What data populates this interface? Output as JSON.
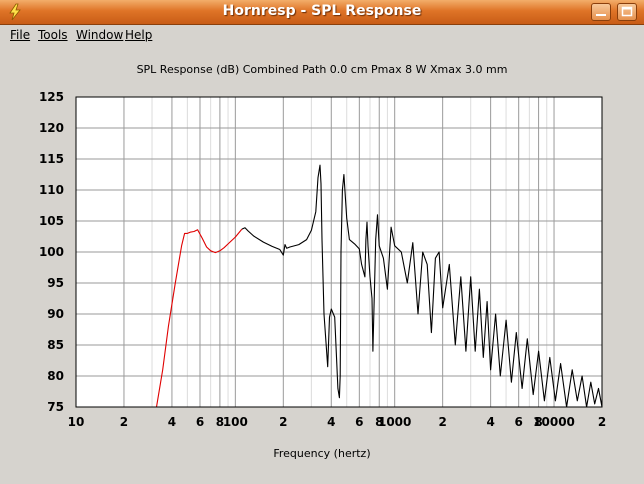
{
  "window": {
    "title": "Hornresp - SPL Response",
    "buttons": {
      "minimize": "minimize-icon",
      "maximize": "maximize-icon"
    },
    "accent_color": "#df7427"
  },
  "menu": [
    {
      "label": "File"
    },
    {
      "label": "Tools"
    },
    {
      "label": "Window"
    },
    {
      "label": "Help"
    }
  ],
  "chart_data": {
    "type": "line",
    "title": "SPL Response (dB)   Combined   Path 0.0 cm   Pmax 8 W   Xmax 3.0 mm",
    "xlabel": "Frequency (hertz)",
    "ylabel": "",
    "x_scale": "log",
    "xlim": [
      10,
      20000
    ],
    "ylim": [
      75,
      125
    ],
    "grid": true,
    "y_ticks": [
      "75",
      "80",
      "85",
      "90",
      "95",
      "100",
      "105",
      "110",
      "115",
      "120",
      "125"
    ],
    "x_ticks": [
      {
        "value": 10,
        "label": "10"
      },
      {
        "value": 20,
        "label": "2"
      },
      {
        "value": 40,
        "label": "4"
      },
      {
        "value": 60,
        "label": "6"
      },
      {
        "value": 80,
        "label": "8"
      },
      {
        "value": 100,
        "label": "100"
      },
      {
        "value": 200,
        "label": "2"
      },
      {
        "value": 400,
        "label": "4"
      },
      {
        "value": 600,
        "label": "6"
      },
      {
        "value": 800,
        "label": "8"
      },
      {
        "value": 1000,
        "label": "1000"
      },
      {
        "value": 2000,
        "label": "2"
      },
      {
        "value": 4000,
        "label": "4"
      },
      {
        "value": 6000,
        "label": "6"
      },
      {
        "value": 8000,
        "label": "8"
      },
      {
        "value": 10000,
        "label": "10000"
      },
      {
        "value": 20000,
        "label": "2"
      }
    ],
    "series": [
      {
        "color": "#e00000",
        "x": [
          32,
          35,
          38,
          42,
          46,
          48,
          50,
          52,
          55,
          58,
          62,
          66,
          70,
          75,
          80,
          85,
          90,
          100,
          110
        ],
        "y": [
          75,
          81,
          88,
          95,
          101,
          103,
          103,
          103.2,
          103.3,
          103.6,
          102.2,
          100.8,
          100.2,
          99.9,
          100.2,
          100.7,
          101.3,
          102.4,
          103.7
        ]
      },
      {
        "color": "#000000",
        "x": [
          110,
          115,
          120,
          130,
          150,
          170,
          190,
          200,
          205,
          210,
          220,
          250,
          280,
          300,
          320,
          330,
          340,
          345,
          350,
          360,
          380,
          390,
          400,
          420,
          440,
          450,
          455,
          460,
          470,
          480,
          490,
          500,
          520,
          560,
          600,
          620,
          650,
          660,
          670,
          680,
          700,
          720,
          730,
          760,
          780,
          800,
          850,
          900,
          950,
          1000,
          1100,
          1200,
          1300,
          1400,
          1500,
          1600,
          1700,
          1800,
          1900,
          2000,
          2200,
          2400,
          2600,
          2800,
          3000,
          3200,
          3400,
          3600,
          3800,
          4000,
          4300,
          4600,
          5000,
          5400,
          5800,
          6300,
          6800,
          7400,
          8000,
          8700,
          9400,
          10200,
          11000,
          12000,
          13000,
          14000,
          15000,
          16000,
          17000,
          18000,
          19000,
          20000
        ],
        "y": [
          103.7,
          103.9,
          103.4,
          102.6,
          101.6,
          100.9,
          100.4,
          99.5,
          101.2,
          100.6,
          100.8,
          101.2,
          102,
          103.5,
          106.5,
          112,
          114,
          111,
          102,
          90,
          81.5,
          89.5,
          90.8,
          89.5,
          78,
          76.5,
          80,
          100,
          110,
          112.5,
          109,
          105.5,
          102,
          101.3,
          100.5,
          98,
          96,
          102,
          104.8,
          101,
          96,
          92.5,
          84,
          102,
          106,
          101,
          99,
          94,
          104,
          101,
          100,
          95,
          101.5,
          90,
          100,
          98,
          87,
          99,
          100,
          91,
          98,
          85,
          96,
          84,
          96,
          84,
          94,
          83,
          92,
          81,
          90,
          80,
          89,
          79,
          87,
          78,
          86,
          77,
          84,
          76,
          83,
          76,
          82,
          75,
          81,
          76,
          80,
          75,
          79,
          75.5,
          78,
          75
        ]
      }
    ]
  }
}
